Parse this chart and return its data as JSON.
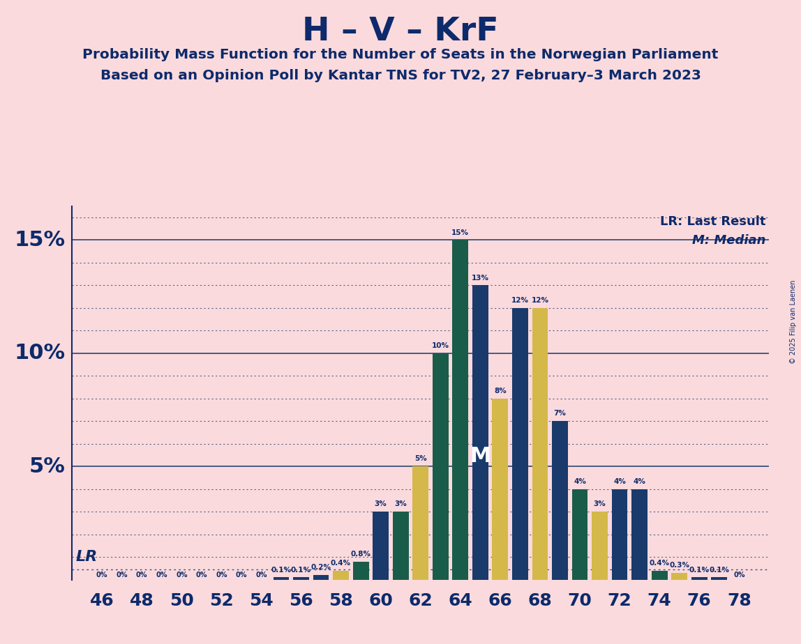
{
  "title": "H – V – KrF",
  "subtitle1": "Probability Mass Function for the Number of Seats in the Norwegian Parliament",
  "subtitle2": "Based on an Opinion Poll by Kantar TNS for TV2, 27 February–3 March 2023",
  "copyright": "© 2025 Filip van Laenen",
  "lr_label": "LR: Last Result",
  "median_label": "M: Median",
  "median_seat": 65,
  "background_color": "#fadadd",
  "bar_color_blue": "#1a3a6b",
  "bar_color_teal": "#1a5c4a",
  "bar_color_yellow": "#d4b84a",
  "title_color": "#0d2a6b",
  "seats": [
    46,
    47,
    48,
    49,
    50,
    51,
    52,
    53,
    54,
    55,
    56,
    57,
    58,
    59,
    60,
    61,
    62,
    63,
    64,
    65,
    66,
    67,
    68,
    69,
    70,
    71,
    72,
    73,
    74,
    75,
    76,
    77,
    78
  ],
  "probabilities": [
    0.0,
    0.0,
    0.0,
    0.0,
    0.0,
    0.0,
    0.0,
    0.0,
    0.0,
    0.1,
    0.1,
    0.2,
    0.4,
    0.8,
    3.0,
    3.0,
    5.0,
    10.0,
    15.0,
    13.0,
    8.0,
    12.0,
    12.0,
    7.0,
    4.0,
    3.0,
    4.0,
    4.0,
    0.4,
    0.3,
    0.1,
    0.1,
    0.0
  ],
  "bar_colors": [
    "#1a3a6b",
    "#1a3a6b",
    "#1a3a6b",
    "#1a3a6b",
    "#1a3a6b",
    "#1a3a6b",
    "#1a3a6b",
    "#1a3a6b",
    "#1a3a6b",
    "#1a3a6b",
    "#1a3a6b",
    "#1a3a6b",
    "#d4b84a",
    "#1a5c4a",
    "#1a3a6b",
    "#1a5c4a",
    "#d4b84a",
    "#1a5c4a",
    "#1a5c4a",
    "#1a3a6b",
    "#d4b84a",
    "#1a3a6b",
    "#d4b84a",
    "#1a3a6b",
    "#1a5c4a",
    "#d4b84a",
    "#1a3a6b",
    "#1a3a6b",
    "#1a5c4a",
    "#d4b84a",
    "#1a3a6b",
    "#1a3a6b",
    "#1a3a6b"
  ],
  "ylim": [
    0,
    16.5
  ],
  "xlim": [
    44.5,
    79.5
  ],
  "lr_y": 0.45,
  "dotted_line_color": "#1a3a6b",
  "solid_line_color": "#1a3a6b",
  "bar_width": 0.8
}
